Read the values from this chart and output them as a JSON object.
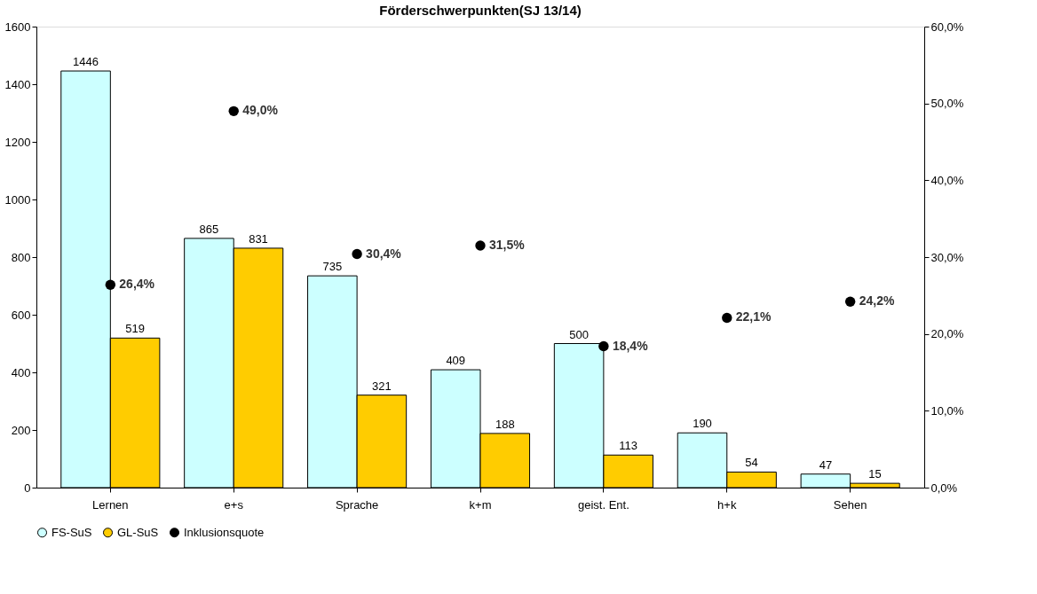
{
  "chart_data": {
    "type": "bar",
    "title": "Förderschwerpunkten(SJ 13/14)",
    "categories": [
      "Lernen",
      "e+s",
      "Sprache",
      "k+m",
      "geist. Ent.",
      "h+k",
      "Sehen"
    ],
    "series": [
      {
        "name": "FS-SuS",
        "color": "#ccffff",
        "values": [
          1446,
          865,
          735,
          409,
          500,
          190,
          47
        ]
      },
      {
        "name": "GL-SuS",
        "color": "#ffcc00",
        "values": [
          519,
          831,
          321,
          188,
          113,
          54,
          15
        ]
      },
      {
        "name": "Inklusionsquote",
        "type": "scatter",
        "axis": "y2",
        "color": "#000000",
        "values": [
          26.4,
          49.0,
          30.4,
          31.5,
          18.4,
          22.1,
          24.2
        ],
        "value_labels": [
          "26,4%",
          "49,0%",
          "30,4%",
          "31,5%",
          "18,4%",
          "22,1%",
          "24,2%"
        ]
      }
    ],
    "data_labels": true,
    "ylim": [
      0,
      1600
    ],
    "yticks": [
      0,
      200,
      400,
      600,
      800,
      1000,
      1200,
      1400,
      1600
    ],
    "y2lim": [
      0,
      60
    ],
    "y2ticks": [
      {
        "value": 0,
        "label": "0,0%"
      },
      {
        "value": 10,
        "label": "10,0%"
      },
      {
        "value": 20,
        "label": "20,0%"
      },
      {
        "value": 30,
        "label": "30,0%"
      },
      {
        "value": 40,
        "label": "40,0%"
      },
      {
        "value": 50,
        "label": "50,0%"
      },
      {
        "value": 60,
        "label": "60,0%"
      }
    ],
    "grid": false,
    "legend": "bottom",
    "marker": "circle"
  }
}
